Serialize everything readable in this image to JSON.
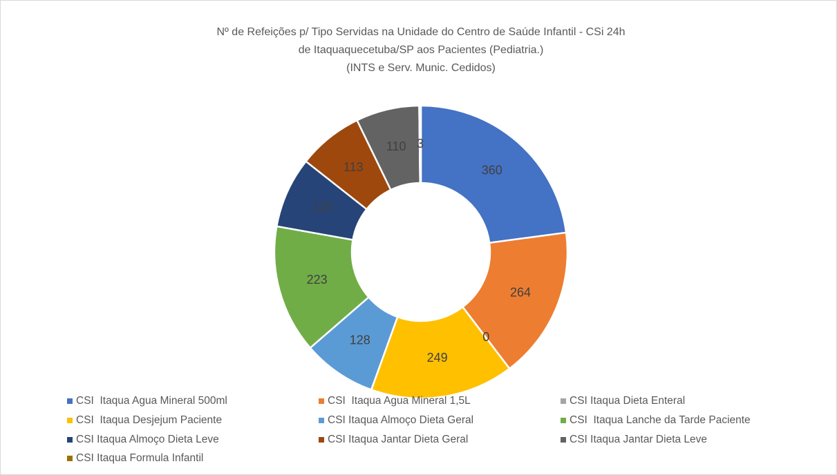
{
  "chart_data": {
    "type": "donut",
    "title": [
      "Nº de Refeições p/ Tipo Servidas na Unidade do Centro de Saúde Infantil - CSi 24h",
      "de Itaquaquecetuba/SP aos Pacientes (Pediatria.)",
      "(INTS e Serv. Munic. Cedidos)"
    ],
    "categories": [
      "CSI  Itaqua Agua Mineral 500ml",
      "CSI  Itaqua Agua Mineral 1,5L",
      "CSI Itaqua Dieta Enteral",
      "CSI  Itaqua Desjejum Paciente",
      "CSI Itaqua Almoço Dieta Geral",
      "CSI  Itaqua Lanche da Tarde Paciente",
      "CSI Itaqua Almoço Dieta Leve",
      "CSI Itaqua Jantar Dieta Geral",
      "CSI Itaqua Jantar Dieta Leve",
      "CSI Itaqua Formula Infantil"
    ],
    "values": [
      360,
      264,
      0,
      249,
      128,
      223,
      123,
      113,
      110,
      3
    ],
    "colors": [
      "#4472c4",
      "#ed7d31",
      "#a5a5a5",
      "#ffc000",
      "#5b9bd5",
      "#70ad47",
      "#264478",
      "#9e480e",
      "#636363",
      "#997300"
    ],
    "legend": "bottom"
  }
}
